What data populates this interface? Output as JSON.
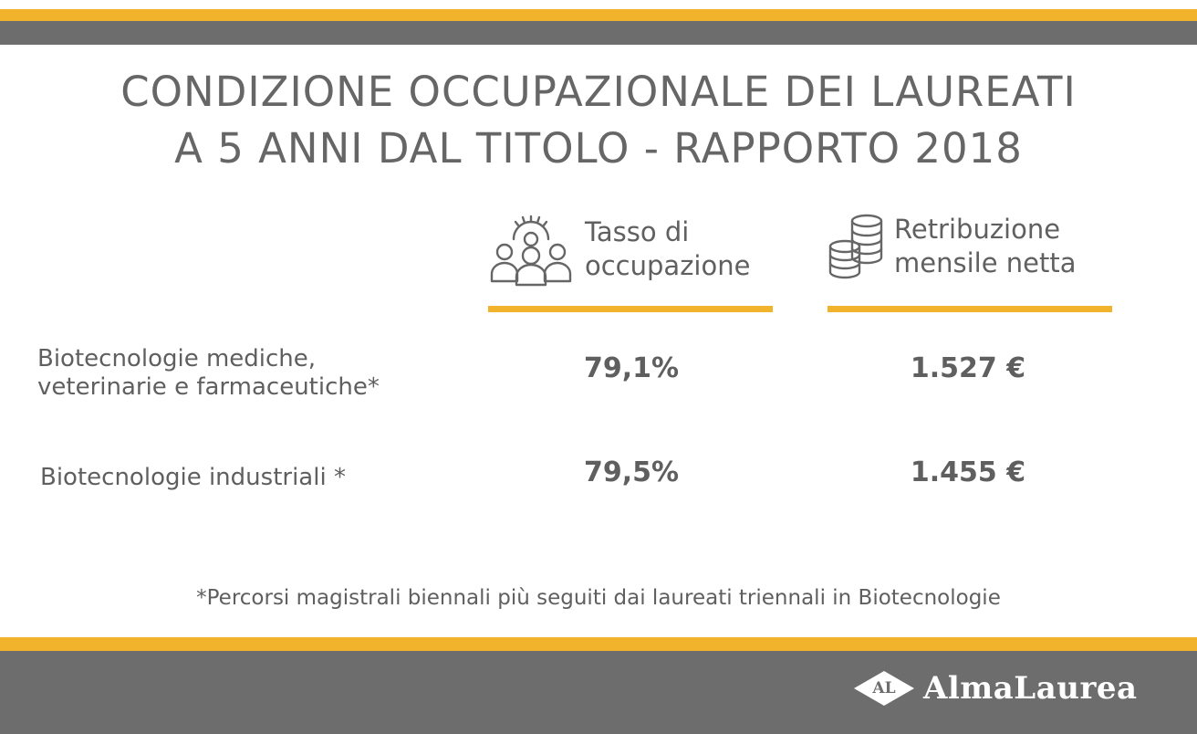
{
  "title": {
    "line1": "CONDIZIONE OCCUPAZIONALE DEI LAUREATI",
    "line2": "A 5 ANNI DAL TITOLO - RAPPORTO 2018"
  },
  "columns": [
    {
      "line1": "Tasso di",
      "line2": "occupazione",
      "icon": "people-gear-icon"
    },
    {
      "line1": "Retribuzione",
      "line2": "mensile netta",
      "icon": "coins-icon"
    }
  ],
  "rows": [
    {
      "line1": "Biotecnologie mediche,",
      "line2": "veterinarie e farmaceutiche*",
      "occupazione": "79,1%",
      "retribuzione": "1.527 €"
    },
    {
      "line1": "Biotecnologie industriali *",
      "line2": "",
      "occupazione": "79,5%",
      "retribuzione": "1.455 €"
    }
  ],
  "footnote": "*Percorsi magistrali biennali più seguiti dai laureati triennali in Biotecnologie",
  "logo": {
    "mark": "AL",
    "text": "AlmaLaurea"
  },
  "colors": {
    "accent": "#f2b32c",
    "band": "#6d6d6d",
    "text": "#5f5f5f"
  }
}
